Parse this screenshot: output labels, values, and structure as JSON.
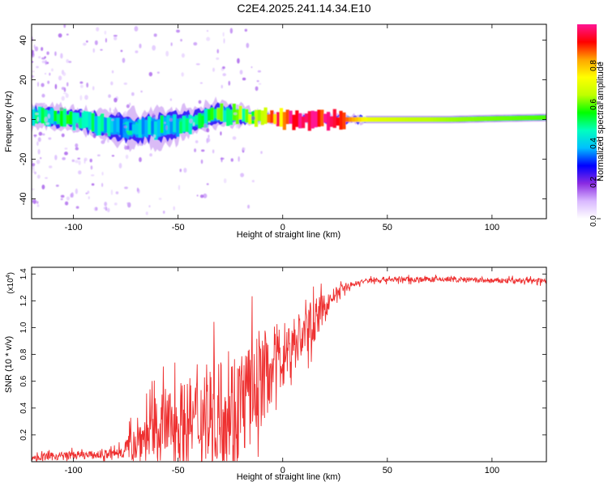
{
  "title": "C2E4.2025.241.14.34.E10",
  "colors": {
    "snr_line": "#ee3030",
    "colormap": [
      "#ffffff",
      "#d9b8ff",
      "#8a2be2",
      "#0000ff",
      "#00bfff",
      "#00ffbf",
      "#00ff00",
      "#bfff00",
      "#ffff00",
      "#ffa500",
      "#ff0000",
      "#ff1493"
    ]
  },
  "chart_data": [
    {
      "type": "heatmap",
      "name": "spectrogram",
      "xlabel": "Height of straight line (km)",
      "ylabel": "Frequency (Hz)",
      "xlim": [
        -120,
        126
      ],
      "ylim": [
        -50,
        48
      ],
      "xticks": [
        -100,
        -50,
        0,
        50,
        100
      ],
      "yticks": [
        -40,
        -20,
        0,
        20,
        40
      ],
      "colorbar": {
        "label": "Normalized spectral amplitude",
        "range": [
          0,
          1
        ],
        "ticks": [
          "0.0",
          "0.2",
          "0.4",
          "0.6",
          "0.8"
        ],
        "tick_values": [
          0.0,
          0.2,
          0.4,
          0.6,
          0.8
        ]
      },
      "ridge": {
        "x": [
          -120,
          -110,
          -100,
          -90,
          -80,
          -70,
          -60,
          -50,
          -40,
          -30,
          -20,
          -10,
          0,
          10,
          20,
          30,
          40,
          60,
          80,
          100,
          126
        ],
        "center_hz": [
          2,
          1,
          0,
          -2,
          -4,
          -5,
          -4,
          -3,
          0,
          3,
          2,
          1,
          0,
          0,
          0,
          0,
          0,
          0,
          0,
          0.5,
          1
        ],
        "amplitude": [
          0.45,
          0.5,
          0.5,
          0.45,
          0.4,
          0.4,
          0.45,
          0.45,
          0.5,
          0.55,
          0.6,
          0.75,
          0.9,
          0.95,
          1.0,
          0.85,
          0.7,
          0.65,
          0.62,
          0.6,
          0.58
        ],
        "spread_hz": [
          6,
          6,
          6,
          7,
          8,
          9,
          9,
          8,
          6,
          7,
          5,
          3,
          2,
          2,
          2,
          2,
          2,
          2,
          2,
          2,
          2
        ]
      }
    },
    {
      "type": "line",
      "name": "snr",
      "xlabel": "Height of straight line (km)",
      "ylabel": "SNR (10 * v/v)",
      "multiplier": "(x10",
      "multiplier_exp": "4",
      "multiplier_close": ")",
      "xlim": [
        -120,
        126
      ],
      "ylim": [
        0,
        1.45
      ],
      "xticks": [
        -100,
        -50,
        0,
        50,
        100
      ],
      "yticks": [
        0.2,
        0.4,
        0.6,
        0.8,
        1.0,
        1.2,
        1.4
      ],
      "ytick_labels": [
        "0.2",
        "0.4",
        "0.6",
        "0.8",
        "1.0",
        "1.2",
        "1.4"
      ],
      "envelope_x": [
        -120,
        -110,
        -100,
        -90,
        -80,
        -75,
        -70,
        -65,
        -60,
        -55,
        -50,
        -45,
        -40,
        -35,
        -30,
        -25,
        -20,
        -15,
        -10,
        -5,
        0,
        5,
        10,
        15,
        20,
        25,
        30,
        35,
        40,
        50,
        60,
        80,
        100,
        126
      ],
      "envelope_mean": [
        0.03,
        0.04,
        0.05,
        0.05,
        0.06,
        0.1,
        0.15,
        0.2,
        0.25,
        0.28,
        0.3,
        0.3,
        0.32,
        0.35,
        0.38,
        0.4,
        0.45,
        0.5,
        0.62,
        0.72,
        0.8,
        0.88,
        0.95,
        1.05,
        1.15,
        1.25,
        1.3,
        1.33,
        1.35,
        1.36,
        1.36,
        1.36,
        1.35,
        1.35
      ],
      "envelope_noise": [
        0.02,
        0.03,
        0.03,
        0.03,
        0.04,
        0.08,
        0.15,
        0.2,
        0.25,
        0.28,
        0.3,
        0.32,
        0.35,
        0.38,
        0.4,
        0.42,
        0.42,
        0.4,
        0.35,
        0.3,
        0.25,
        0.22,
        0.2,
        0.16,
        0.1,
        0.05,
        0.03,
        0.02,
        0.02,
        0.02,
        0.02,
        0.02,
        0.02,
        0.02
      ],
      "num_points": 1200
    }
  ]
}
